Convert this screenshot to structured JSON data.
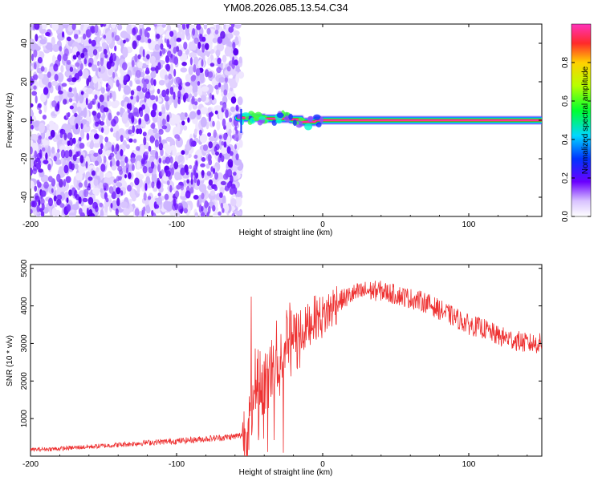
{
  "title": "YM08.2026.085.13.54.C34",
  "chart_data": [
    {
      "type": "heatmap",
      "xlabel": "Height of straight line (km)",
      "ylabel": "Frequency (Hz)",
      "xlim": [
        -200,
        150
      ],
      "ylim": [
        -50,
        50
      ],
      "xticks": [
        -200,
        -100,
        0,
        100
      ],
      "yticks": [
        -40,
        -20,
        0,
        20,
        40
      ],
      "colorbar": {
        "label": "Normalized spectral amplitude",
        "range": [
          0,
          1
        ],
        "ticks": [
          "0.0",
          "0.2",
          "0.4",
          "0.6",
          "0.8"
        ],
        "tick_values": [
          0,
          0.2,
          0.4,
          0.6,
          0.8
        ]
      },
      "regions": {
        "noise_x_range": [
          -200,
          -58
        ],
        "carrier_start_x": -58,
        "carrier_frequency_hz": 0
      }
    },
    {
      "type": "line",
      "xlabel": "Height of straight line (km)",
      "ylabel": "SNR (10 * v/v)",
      "xlim": [
        -200,
        150
      ],
      "ylim": [
        0,
        5100
      ],
      "xticks": [
        -200,
        -100,
        0,
        100
      ],
      "yticks": [
        1000,
        2000,
        3000,
        4000,
        5000
      ],
      "color": "#ee3333",
      "series": [
        {
          "name": "",
          "x": [
            -200,
            -180,
            -160,
            -140,
            -120,
            -100,
            -80,
            -60,
            -52,
            -48,
            -45,
            -42,
            -40,
            -35,
            -30,
            -25,
            -20,
            -15,
            -10,
            -5,
            0,
            5,
            10,
            20,
            30,
            40,
            50,
            60,
            70,
            80,
            90,
            100,
            110,
            120,
            130,
            140,
            150
          ],
          "values": [
            170,
            200,
            250,
            300,
            360,
            400,
            460,
            520,
            600,
            1500,
            2300,
            2000,
            1800,
            2300,
            2800,
            3000,
            3000,
            3200,
            3500,
            3700,
            3700,
            3900,
            4100,
            4300,
            4400,
            4400,
            4300,
            4200,
            4100,
            3900,
            3700,
            3500,
            3400,
            3200,
            3100,
            3000,
            3000
          ]
        }
      ]
    }
  ]
}
